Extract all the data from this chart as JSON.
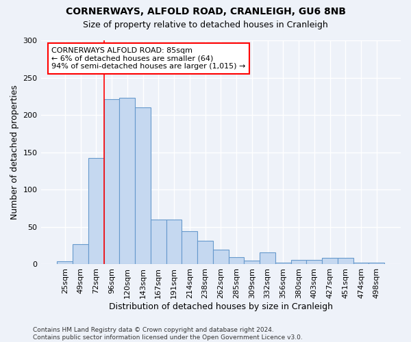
{
  "title1": "CORNERWAYS, ALFOLD ROAD, CRANLEIGH, GU6 8NB",
  "title2": "Size of property relative to detached houses in Cranleigh",
  "xlabel": "Distribution of detached houses by size in Cranleigh",
  "ylabel": "Number of detached properties",
  "bar_labels": [
    "25sqm",
    "49sqm",
    "72sqm",
    "96sqm",
    "120sqm",
    "143sqm",
    "167sqm",
    "191sqm",
    "214sqm",
    "238sqm",
    "262sqm",
    "285sqm",
    "309sqm",
    "332sqm",
    "356sqm",
    "380sqm",
    "403sqm",
    "427sqm",
    "451sqm",
    "474sqm",
    "498sqm"
  ],
  "bar_values": [
    4,
    27,
    142,
    221,
    223,
    210,
    60,
    60,
    44,
    32,
    20,
    10,
    5,
    16,
    2,
    6,
    6,
    9,
    9,
    2,
    2
  ],
  "bar_color": "#c5d8f0",
  "bar_edge_color": "#6699cc",
  "vline_x": 2.5,
  "vline_color": "red",
  "annotation_text": "CORNERWAYS ALFOLD ROAD: 85sqm\n← 6% of detached houses are smaller (64)\n94% of semi-detached houses are larger (1,015) →",
  "annotation_box_color": "white",
  "annotation_box_edge_color": "red",
  "ylim": [
    0,
    300
  ],
  "yticks": [
    0,
    50,
    100,
    150,
    200,
    250,
    300
  ],
  "footer": "Contains HM Land Registry data © Crown copyright and database right 2024.\nContains public sector information licensed under the Open Government Licence v3.0.",
  "bg_color": "#eef2f9",
  "grid_color": "white",
  "title_fontsize": 10,
  "subtitle_fontsize": 9,
  "axis_label_fontsize": 9,
  "tick_fontsize": 8,
  "footer_fontsize": 6.5
}
